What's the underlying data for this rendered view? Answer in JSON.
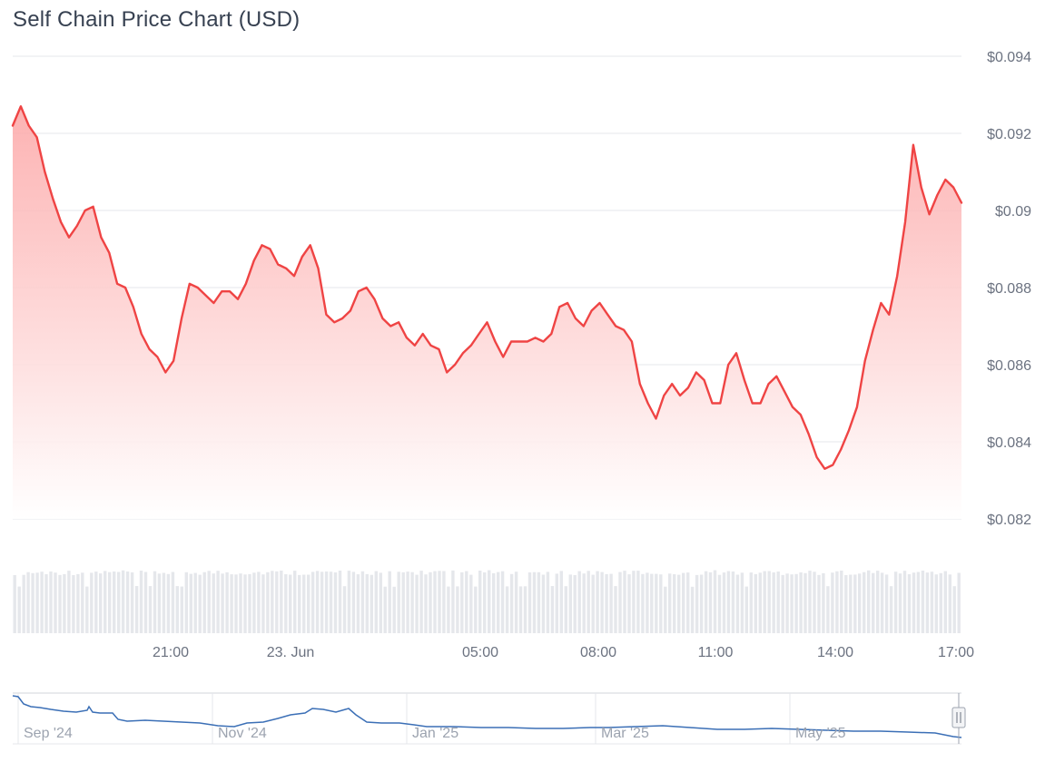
{
  "chart_data": {
    "type": "line",
    "title": "Self Chain Price Chart (USD)",
    "xlabel": "",
    "ylabel": "",
    "y_ticks": [
      "$0.094",
      "$0.092",
      "$0.09",
      "$0.088",
      "$0.086",
      "$0.084",
      "$0.082"
    ],
    "y_tick_values": [
      0.094,
      0.092,
      0.09,
      0.088,
      0.086,
      0.084,
      0.082
    ],
    "ylim": [
      0.082,
      0.094
    ],
    "x_ticks": [
      "21:00",
      "23. Jun",
      "05:00",
      "08:00",
      "11:00",
      "14:00",
      "17:00"
    ],
    "grid": true,
    "colors": {
      "line": "#ef4444",
      "area_top": "#fca5a5",
      "volume": "#e5e7eb",
      "navigator_line": "#3b6fb6",
      "grid": "#e5e7eb"
    },
    "series": [
      {
        "values": [
          0.0922,
          0.0927,
          0.0922,
          0.0919,
          0.091,
          0.0903,
          0.0897,
          0.0893,
          0.0896,
          0.09,
          0.0901,
          0.0893,
          0.0889,
          0.0881,
          0.088,
          0.0875,
          0.0868,
          0.0864,
          0.0862,
          0.0858,
          0.0861,
          0.0872,
          0.0881,
          0.088,
          0.0878,
          0.0876,
          0.0879,
          0.0879,
          0.0877,
          0.0881,
          0.0887,
          0.0891,
          0.089,
          0.0886,
          0.0885,
          0.0883,
          0.0888,
          0.0891,
          0.0885,
          0.0873,
          0.0871,
          0.0872,
          0.0874,
          0.0879,
          0.088,
          0.0877,
          0.0872,
          0.087,
          0.0871,
          0.0867,
          0.0865,
          0.0868,
          0.0865,
          0.0864,
          0.0858,
          0.086,
          0.0863,
          0.0865,
          0.0868,
          0.0871,
          0.0866,
          0.0862,
          0.0866,
          0.0866,
          0.0866,
          0.0867,
          0.0866,
          0.0868,
          0.0875,
          0.0876,
          0.0872,
          0.087,
          0.0874,
          0.0876,
          0.0873,
          0.087,
          0.0869,
          0.0866,
          0.0855,
          0.085,
          0.0846,
          0.0852,
          0.0855,
          0.0852,
          0.0854,
          0.0858,
          0.0856,
          0.085,
          0.085,
          0.086,
          0.0863,
          0.0856,
          0.085,
          0.085,
          0.0855,
          0.0857,
          0.0853,
          0.0849,
          0.0847,
          0.0842,
          0.0836,
          0.0833,
          0.0834,
          0.0838,
          0.0843,
          0.0849,
          0.0861,
          0.0869,
          0.0876,
          0.0873,
          0.0883,
          0.0897,
          0.0917,
          0.0906,
          0.0899,
          0.0904,
          0.0908,
          0.0906,
          0.0902
        ]
      }
    ]
  },
  "navigator": {
    "labels": [
      "Sep '24",
      "Nov '24",
      "Jan '25",
      "Mar '25",
      "May '25"
    ]
  }
}
